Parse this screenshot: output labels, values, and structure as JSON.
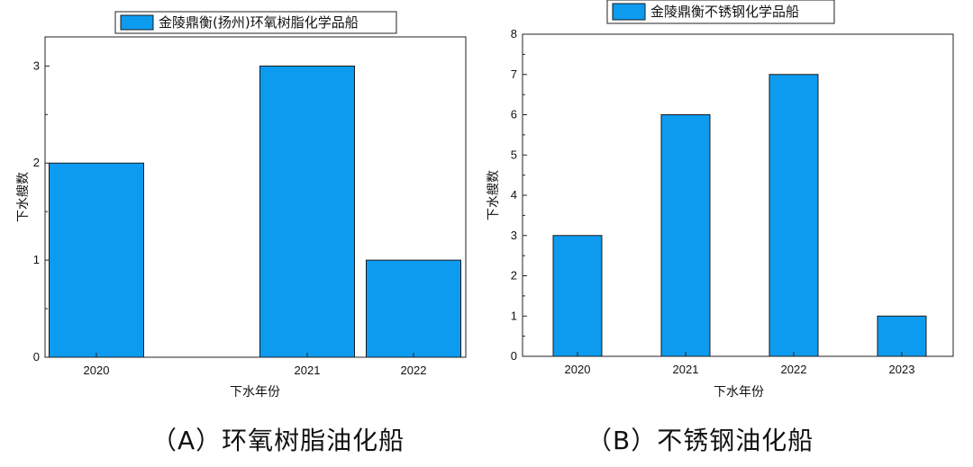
{
  "colors": {
    "bar": "#0d9bf0",
    "bar_edge": "#1a1a1a",
    "axis": "#222222"
  },
  "chart_data": [
    {
      "type": "bar",
      "categories": [
        "2020",
        "2021",
        "2022"
      ],
      "values": [
        2,
        3,
        1
      ],
      "series": [
        {
          "name": "金陵鼎衡(扬州)环氧树脂化学品船",
          "values": [
            2,
            3,
            1
          ]
        }
      ],
      "xlabel": "下水年份",
      "ylabel": "下水艘数",
      "ylim": [
        0,
        3.3
      ],
      "yticks": [
        0,
        1,
        2,
        3
      ],
      "legend": "top-center",
      "grid": false
    },
    {
      "type": "bar",
      "categories": [
        "2020",
        "2021",
        "2022",
        "2023"
      ],
      "values": [
        3,
        6,
        7,
        1
      ],
      "series": [
        {
          "name": "金陵鼎衡不锈钢化学品船",
          "values": [
            3,
            6,
            7,
            1
          ]
        }
      ],
      "xlabel": "下水年份",
      "ylabel": "下水艘数",
      "ylim": [
        0,
        8
      ],
      "yticks": [
        0,
        1,
        2,
        3,
        4,
        5,
        6,
        7,
        8
      ],
      "legend": "top-center",
      "grid": false
    }
  ],
  "captions": {
    "a": "（A）环氧树脂油化船",
    "b": "（B）不锈钢油化船"
  }
}
